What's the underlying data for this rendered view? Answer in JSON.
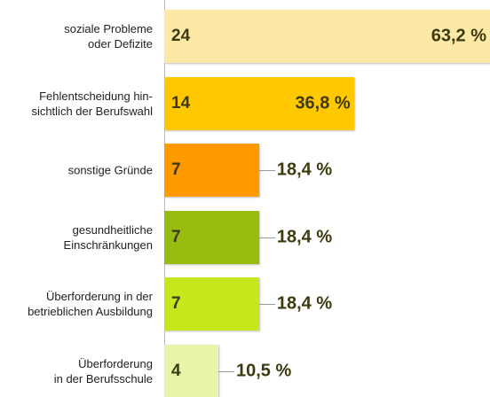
{
  "chart_data": {
    "type": "bar",
    "orientation": "horizontal",
    "categories": [
      "soziale Probleme\noder Defizite",
      "Fehlentscheidung hin-\nsichtlich der Berufswahl",
      "sonstige Gründe",
      "gesundheitliche\nEinschränkungen",
      "Überforderung in der\nbetrieblichen Ausbildung",
      "Überforderung\nin der Berufsschule"
    ],
    "counts": [
      24,
      14,
      7,
      7,
      7,
      4
    ],
    "values": [
      63.2,
      36.8,
      18.4,
      18.4,
      18.4,
      10.5
    ],
    "value_labels": [
      "63,2 %",
      "36,8 %",
      "18,4 %",
      "18,4 %",
      "18,4 %",
      "10,5 %"
    ],
    "colors": [
      "#fde9a6",
      "#ffc800",
      "#ff9a00",
      "#98bb10",
      "#c5e81c",
      "#e6f5a8"
    ],
    "xlim": [
      0,
      63.2
    ]
  }
}
